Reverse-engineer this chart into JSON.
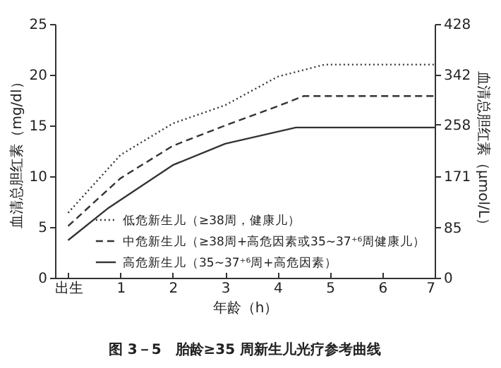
{
  "chart_data": {
    "type": "line",
    "title": "图 3－5　胎龄≥35 周新生儿光疗参考曲线",
    "xlabel": "年龄（h）",
    "ylabel": "血清总胆红素（mg/dl）",
    "y2label": "血清总胆红素（μmol/L）",
    "xlim": [
      -0.25,
      7
    ],
    "xticks": [
      {
        "value": 0,
        "label": "出生"
      },
      1,
      2,
      3,
      4,
      5,
      6,
      7
    ],
    "ylim": [
      0,
      25
    ],
    "yticks": [
      0,
      5,
      10,
      15,
      20,
      25
    ],
    "y2lim": [
      0,
      428
    ],
    "y2ticks": [
      0,
      85,
      171,
      258,
      342,
      428
    ],
    "grid": false,
    "legend": "bottom right",
    "marker": "none",
    "series": [
      {
        "name": "低危新生儿（≥38周，健康儿）",
        "color": "#333333",
        "line_style": "dotted",
        "x": [
          0,
          1,
          2,
          3,
          4,
          4.9,
          7
        ],
        "values": [
          6.4,
          12.1,
          15.2,
          17,
          19.8,
          21,
          21
        ]
      },
      {
        "name": "中危新生儿（≥38周+高危因素或35~37⁺⁶周健康儿）",
        "color": "#333333",
        "line_style": "dashed",
        "x": [
          0,
          1,
          2,
          3,
          4,
          4.5,
          7
        ],
        "values": [
          5.1,
          9.8,
          13,
          15,
          16.9,
          17.9,
          17.9
        ]
      },
      {
        "name": "高危新生儿（35~37⁺⁶周+高危因素）",
        "color": "#333333",
        "line_style": "solid",
        "x": [
          0,
          0.75,
          2,
          3,
          4.35,
          7
        ],
        "values": [
          3.7,
          6.8,
          11.1,
          13.2,
          14.8,
          14.8
        ]
      }
    ]
  }
}
